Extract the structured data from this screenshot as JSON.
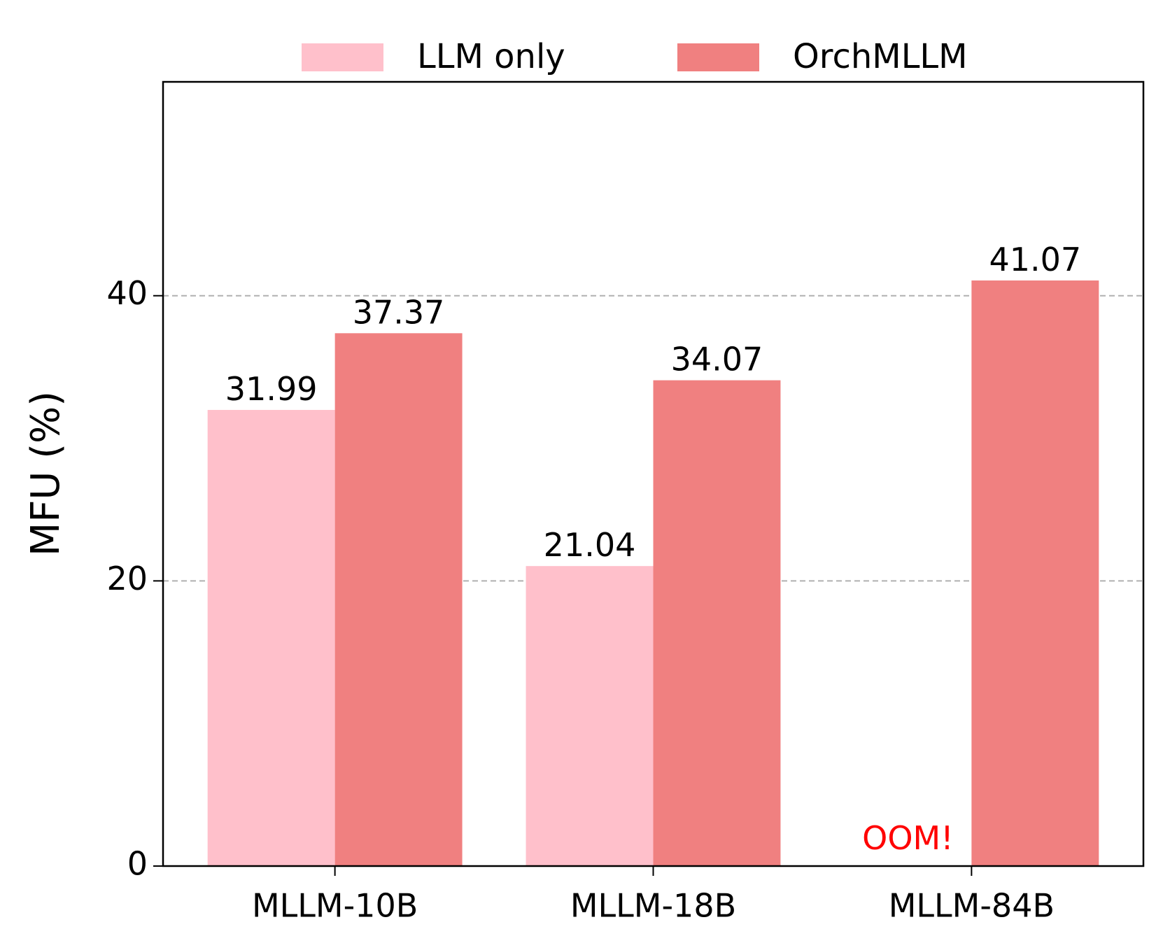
{
  "chart_data": {
    "type": "bar",
    "ylabel": "MFU (%)",
    "categories": [
      "MLLM-10B",
      "MLLM-18B",
      "MLLM-84B"
    ],
    "series": [
      {
        "name": "LLM only",
        "color": "#ffc0cb",
        "values": [
          31.99,
          21.04,
          null
        ]
      },
      {
        "name": "OrchMLLM",
        "color": "#f08080",
        "values": [
          37.37,
          34.07,
          41.07
        ]
      }
    ],
    "annotation": "OOM!",
    "annotation_color": "#ff0000",
    "ylim": [
      0,
      55
    ],
    "yticks": [
      0,
      20,
      40
    ],
    "grid": true,
    "legend": "top"
  }
}
